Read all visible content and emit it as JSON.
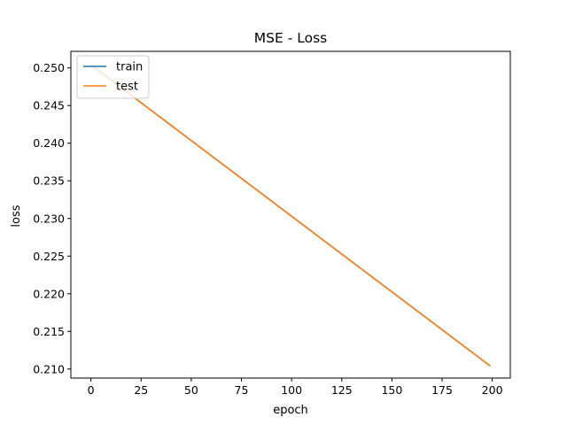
{
  "chart_data": {
    "type": "line",
    "title": "MSE - Loss",
    "xlabel": "epoch",
    "ylabel": "loss",
    "xlim": [
      -10,
      209
    ],
    "ylim": [
      0.2088,
      0.2522
    ],
    "xticks": [
      0,
      25,
      50,
      75,
      100,
      125,
      150,
      175,
      200
    ],
    "yticks": [
      0.21,
      0.215,
      0.22,
      0.225,
      0.23,
      0.235,
      0.24,
      0.245,
      0.25
    ],
    "ytick_labels": [
      "0.210",
      "0.215",
      "0.220",
      "0.225",
      "0.230",
      "0.235",
      "0.240",
      "0.245",
      "0.250"
    ],
    "grid": false,
    "legend_position": "upper-left",
    "series": [
      {
        "name": "train",
        "color": "#1f77b4",
        "x": [
          0,
          199
        ],
        "y": [
          0.2504,
          0.2104
        ]
      },
      {
        "name": "test",
        "color": "#ff7f0e",
        "x": [
          0,
          199
        ],
        "y": [
          0.2504,
          0.2104
        ]
      }
    ]
  }
}
